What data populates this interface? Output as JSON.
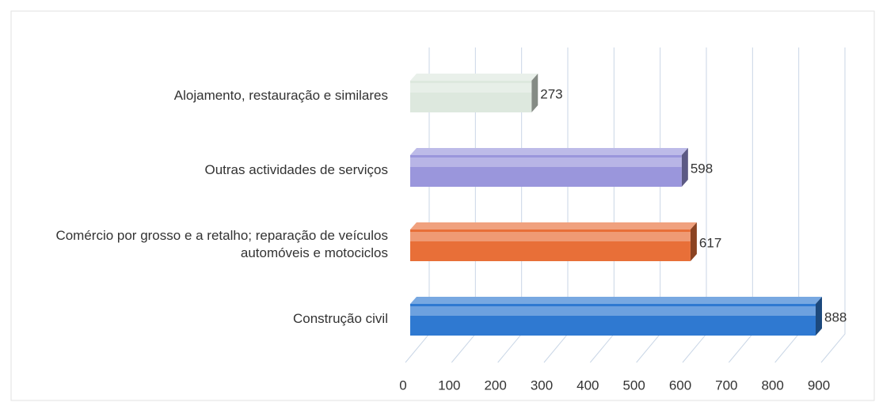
{
  "chart_data": {
    "type": "bar",
    "orientation": "horizontal",
    "categories": [
      "Alojamento, restauração e similares",
      "Outras actividades de serviços",
      "Comércio por grosso e a retalho; reparação de veículos automóveis e motociclos",
      "Construção civil"
    ],
    "values": [
      273,
      598,
      617,
      888
    ],
    "colors": [
      "#dde8de",
      "#9a96dc",
      "#e86f38",
      "#2f79d1"
    ],
    "xlim": [
      0,
      900
    ],
    "xticks": [
      0,
      100,
      200,
      300,
      400,
      500,
      600,
      700,
      800,
      900
    ],
    "grid": true
  }
}
